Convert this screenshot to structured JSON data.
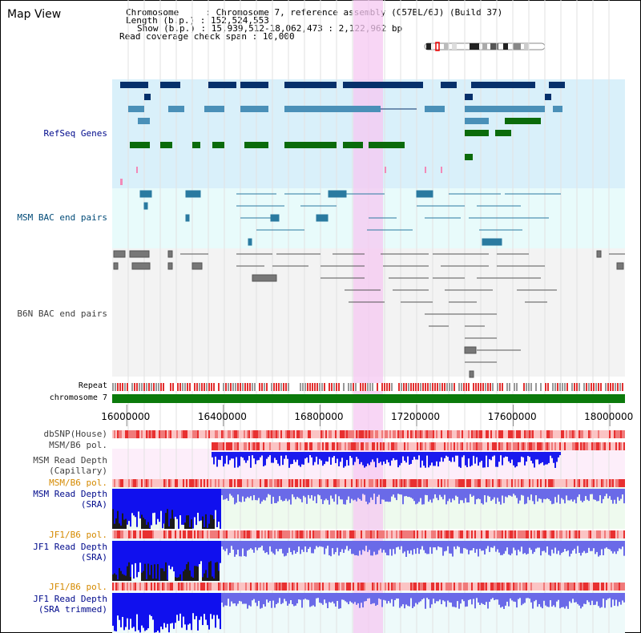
{
  "title": "Map View",
  "info": {
    "chromosome_label": "Chromosome",
    "chromosome_value": "Chromosome 7, reference assembly (C57BL/6J) (Build 37)",
    "length_label": "Length (b.p.)",
    "length_value": "152,524,553",
    "show_label": "Show (b.p.)",
    "show_value": "15,939,512-18,062,473 : 2,122,962 bp",
    "coverage_label": "Read coverage check span",
    "coverage_value": "10,000"
  },
  "tracks": {
    "refseq": "RefSeq Genes",
    "msm_bac": "MSM BAC end pairs",
    "b6n_bac": "B6N BAC end pairs",
    "repeat": "Repeat",
    "chromosome": "chromosome 7",
    "dbsnp": "dbSNP(House)",
    "msm_b6_pol_1": "MSM/B6 pol.",
    "msm_depth_cap_1": "MSM Read Depth",
    "msm_depth_cap_2": "(Capillary)",
    "msm_b6_pol_2": "MSM/B6 pol.",
    "msm_depth_sra_1": "MSM Read Depth",
    "msm_depth_sra_2": "(SRA)",
    "jf1_b6_pol_1": "JF1/B6 pol.",
    "jf1_depth_sra_1": "JF1 Read Depth",
    "jf1_depth_sra_2": "(SRA)",
    "jf1_b6_pol_2": "JF1/B6 pol.",
    "jf1_depth_trim_1": "JF1 Read Depth",
    "jf1_depth_trim_2": "(SRA trimmed)"
  },
  "axis": {
    "ticks": [
      "16000000",
      "16400000",
      "16800000",
      "17200000",
      "17600000",
      "18000000"
    ],
    "tick_values": [
      16000000,
      16400000,
      16800000,
      17200000,
      17600000,
      18000000
    ],
    "range": [
      15939512,
      18062473
    ]
  },
  "colors": {
    "refseq_bg": "#d9f0fa",
    "bac_bg": "#e8fbfb",
    "b6n_bg": "#f3f3f3",
    "highlight": "#f5d2f3",
    "gene_dark": "#06306b",
    "gene_mid": "#4a90b8",
    "gene_green": "#0b6b0b",
    "chrom_green": "#0b7a0b",
    "depth_blue": "#1a1aee",
    "pol_red": "#e83030"
  }
}
